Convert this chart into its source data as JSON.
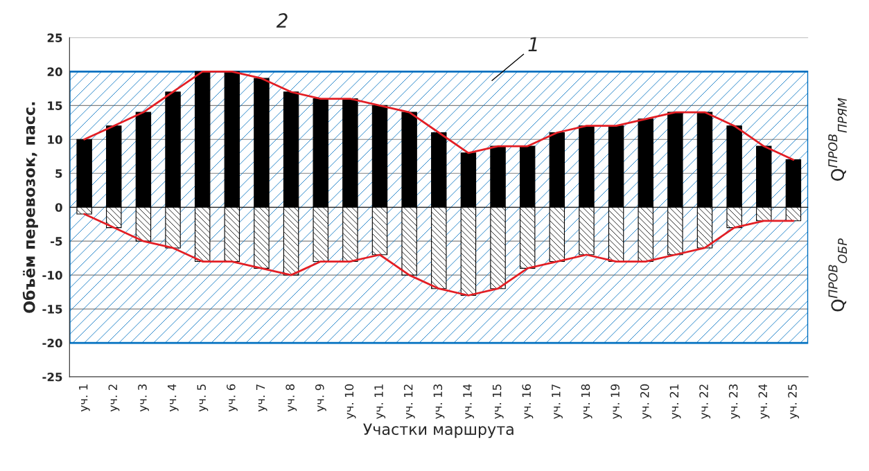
{
  "chart_data": {
    "type": "bar",
    "xlabel": "Участки маршрута",
    "ylabel": "Объём перевозок, пасс.",
    "categories": [
      "уч. 1",
      "уч. 2",
      "уч. 3",
      "уч. 4",
      "уч. 5",
      "уч. 6",
      "уч. 7",
      "уч. 8",
      "уч. 9",
      "уч. 10",
      "уч. 11",
      "уч. 12",
      "уч. 13",
      "уч. 14",
      "уч. 15",
      "уч. 16",
      "уч. 17",
      "уч. 18",
      "уч. 19",
      "уч. 20",
      "уч. 21",
      "уч. 22",
      "уч. 23",
      "уч. 24",
      "уч. 25"
    ],
    "series": [
      {
        "color": "#000000",
        "values": [
          10,
          12,
          14,
          17,
          20,
          20,
          19,
          17,
          16,
          16,
          15,
          14,
          11,
          8,
          9,
          9,
          11,
          12,
          12,
          13,
          14,
          14,
          12,
          9,
          7
        ]
      },
      {
        "color": "#000000",
        "values": [
          -1,
          -3,
          -5,
          -6,
          -8,
          -8,
          -9,
          -10,
          -8,
          -8,
          -7,
          -10,
          -12,
          -13,
          -12,
          -9,
          -8,
          -7,
          -8,
          -8,
          -7,
          -6,
          -3,
          -2,
          -2
        ]
      },
      {
        "type": "line",
        "color": "#e31e24",
        "values": [
          10,
          12,
          14,
          17,
          20,
          20,
          19,
          17,
          16,
          16,
          15,
          14,
          11,
          8,
          9,
          9,
          11,
          12,
          12,
          13,
          14,
          14,
          12,
          9,
          7
        ]
      },
      {
        "type": "line",
        "color": "#e31e24",
        "values": [
          -1,
          -3,
          -5,
          -6,
          -8,
          -8,
          -9,
          -10,
          -8,
          -8,
          -7,
          -10,
          -12,
          -13,
          -12,
          -9,
          -8,
          -7,
          -8,
          -8,
          -7,
          -6,
          -3,
          -2,
          -2
        ]
      }
    ],
    "stacked": true,
    "ylim": [
      -25,
      25
    ],
    "yticks": [
      -25,
      -20,
      -15,
      -10,
      -5,
      0,
      5,
      10,
      15,
      20,
      25
    ],
    "grid": "y",
    "bands": [
      {
        "axis": "y",
        "from": -20,
        "to": 20,
        "label": "1",
        "color": "#0070c0"
      }
    ],
    "annotations": [
      "2",
      "Q$^{ПРОВ}$$_{ПРЯМ}$",
      "Q$^{ПРОВ}$$_{ОБР}$"
    ]
  }
}
